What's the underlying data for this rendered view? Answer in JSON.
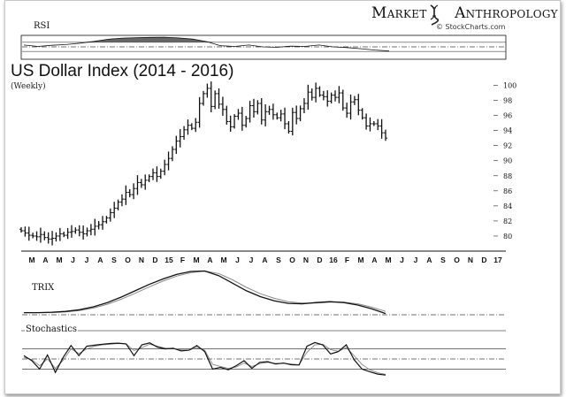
{
  "header": {
    "brand_left": "Market",
    "brand_right": "Anthropology",
    "source": "© StockCharts.com"
  },
  "chart_data": [
    {
      "type": "line",
      "panel": "rsi",
      "title": "RSI",
      "ylim": [
        0,
        100
      ],
      "reference_lines": [
        70,
        50,
        30
      ],
      "x": [
        "M",
        "A",
        "M",
        "J",
        "J",
        "A",
        "S",
        "O",
        "N",
        "D",
        "15",
        "F",
        "M",
        "A",
        "M",
        "J",
        "J",
        "A",
        "S",
        "O",
        "N",
        "D",
        "16",
        "F",
        "M",
        "A",
        "M"
      ],
      "values": [
        58,
        52,
        57,
        60,
        66,
        74,
        83,
        88,
        90,
        91,
        92,
        89,
        84,
        73,
        55,
        52,
        58,
        50,
        48,
        53,
        52,
        58,
        50,
        47,
        42,
        36,
        32
      ],
      "shaded_above": 70
    },
    {
      "type": "ohlc",
      "panel": "price",
      "title": "US Dollar Index (2014 - 2016)",
      "subtitle": "(Weekly)",
      "ylim": [
        78,
        101
      ],
      "y_ticks": [
        80,
        82,
        84,
        86,
        88,
        90,
        92,
        94,
        96,
        98,
        100
      ],
      "x_tick_labels": [
        "M",
        "A",
        "M",
        "J",
        "J",
        "A",
        "S",
        "O",
        "N",
        "D",
        "15",
        "F",
        "M",
        "A",
        "M",
        "J",
        "J",
        "A",
        "S",
        "O",
        "N",
        "D",
        "16",
        "F",
        "M",
        "A",
        "M",
        "J",
        "J",
        "A",
        "S",
        "O",
        "N",
        "D",
        "17"
      ],
      "weekly_close": [
        80.7,
        80.4,
        80.1,
        80.0,
        79.9,
        80.2,
        79.8,
        79.6,
        79.7,
        80.0,
        80.3,
        80.1,
        80.5,
        80.6,
        80.8,
        80.5,
        80.3,
        80.7,
        80.9,
        81.3,
        81.5,
        81.9,
        82.4,
        83.1,
        83.7,
        84.5,
        84.9,
        85.8,
        85.5,
        86.3,
        87.1,
        86.8,
        87.4,
        87.9,
        88.4,
        87.9,
        88.6,
        89.5,
        90.3,
        91.5,
        92.6,
        93.2,
        94.1,
        94.7,
        94.3,
        95.1,
        97.6,
        98.9,
        99.6,
        97.2,
        98.9,
        97.5,
        96.8,
        95.2,
        94.5,
        95.9,
        96.3,
        94.7,
        95.6,
        97.3,
        96.5,
        97.6,
        95.4,
        96.5,
        96.8,
        96.1,
        95.7,
        96.2,
        94.9,
        93.9,
        96.4,
        95.6,
        96.9,
        97.6,
        99.1,
        98.4,
        99.6,
        98.7,
        98.5,
        97.9,
        98.7,
        98.4,
        99.0,
        97.0,
        96.3,
        97.8,
        98.1,
        96.7,
        95.7,
        94.6,
        94.9,
        94.9,
        94.6,
        93.7,
        93.0
      ]
    },
    {
      "type": "line",
      "panel": "trix",
      "title": "TRIX",
      "series": [
        {
          "values": [
            0.0,
            0.0,
            0.01,
            0.03,
            0.07,
            0.14,
            0.24,
            0.37,
            0.52,
            0.67,
            0.8,
            0.91,
            0.98,
            0.99,
            0.88,
            0.7,
            0.52,
            0.38,
            0.28,
            0.22,
            0.21,
            0.24,
            0.26,
            0.24,
            0.18,
            0.09,
            -0.02
          ]
        },
        {
          "values": [
            0.0,
            0.0,
            0.0,
            0.02,
            0.05,
            0.11,
            0.2,
            0.32,
            0.46,
            0.61,
            0.75,
            0.87,
            0.95,
            0.99,
            0.93,
            0.78,
            0.6,
            0.45,
            0.34,
            0.26,
            0.23,
            0.23,
            0.25,
            0.25,
            0.21,
            0.13,
            0.03
          ]
        }
      ],
      "reference_lines": [
        0
      ]
    },
    {
      "type": "line",
      "panel": "stochastics",
      "title": "Stochastics",
      "ylim": [
        0,
        100
      ],
      "reference_lines": [
        80,
        50,
        20
      ],
      "series": [
        {
          "values": [
            60,
            45,
            20,
            62,
            10,
            55,
            90,
            60,
            88,
            91,
            94,
            96,
            97,
            95,
            60,
            92,
            98,
            85,
            80,
            82,
            74,
            76,
            90,
            72,
            20,
            25,
            18,
            30,
            45,
            22,
            40,
            42,
            35,
            38,
            33,
            32,
            88,
            99,
            92,
            65,
            72,
            92,
            48,
            20,
            12,
            5,
            2
          ]
        },
        {
          "values": [
            55,
            48,
            30,
            50,
            22,
            46,
            80,
            66,
            80,
            88,
            92,
            94,
            96,
            95,
            75,
            84,
            94,
            88,
            82,
            81,
            77,
            76,
            84,
            76,
            34,
            28,
            22,
            26,
            38,
            28,
            36,
            40,
            37,
            37,
            35,
            33,
            70,
            92,
            94,
            78,
            73,
            84,
            60,
            34,
            18,
            9,
            4
          ]
        }
      ]
    }
  ]
}
